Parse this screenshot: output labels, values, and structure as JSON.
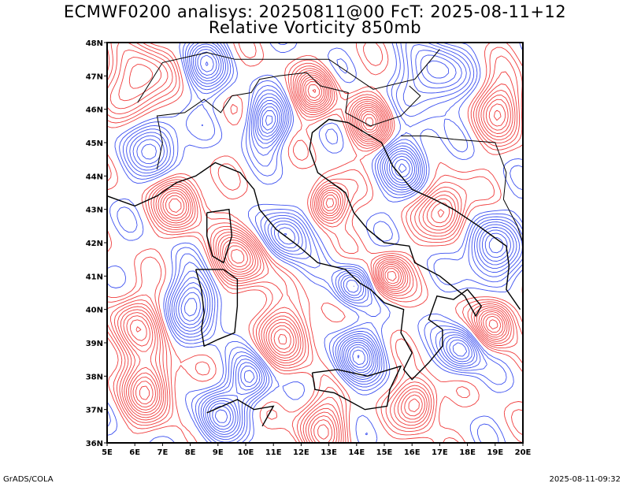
{
  "title_line1": "ECMWF0200 analisys: 20250811@00 FcT: 2025-08-11+12",
  "title_line2": "Relative Vorticity 850mb",
  "footer_left": "GrADS/COLA",
  "footer_right": "2025-08-11-09:32",
  "map": {
    "lon_range": [
      5,
      20
    ],
    "lat_range": [
      36,
      48
    ],
    "lon_labels": [
      "5E",
      "6E",
      "7E",
      "8E",
      "9E",
      "10E",
      "11E",
      "12E",
      "13E",
      "14E",
      "15E",
      "16E",
      "17E",
      "18E",
      "19E",
      "20E"
    ],
    "lat_labels": [
      "36N",
      "37N",
      "38N",
      "39N",
      "40N",
      "41N",
      "42N",
      "43N",
      "44N",
      "45N",
      "46N",
      "47N",
      "48N"
    ],
    "colors": {
      "positive": "#f03c3c",
      "negative": "#3c50f0",
      "coast": "#000000"
    }
  }
}
